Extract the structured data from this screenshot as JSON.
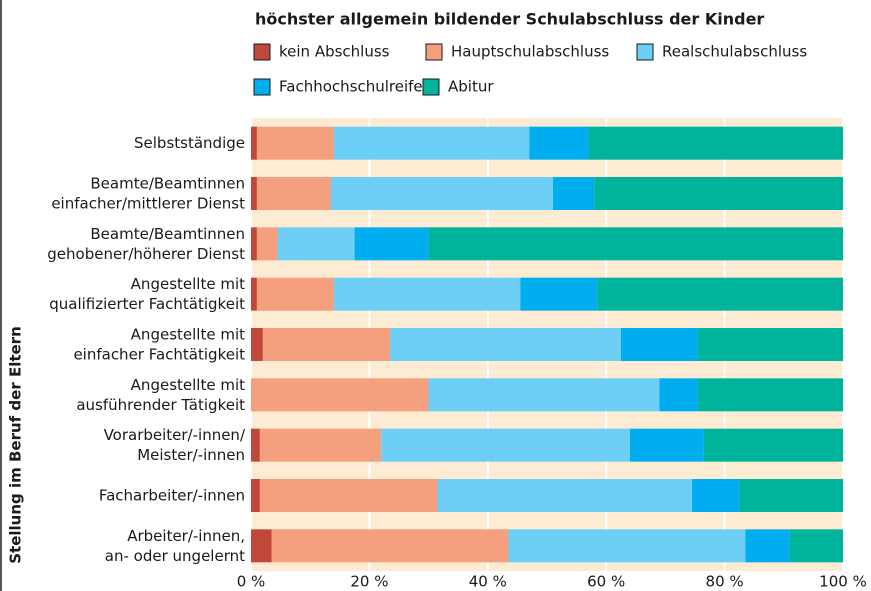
{
  "chart_data": {
    "type": "stacked_barh",
    "title": "höchster allgemein bildender Schulabschluss der Kinder",
    "ylabel": "Stellung im Beruf der Eltern",
    "categories": [
      "Selbstständige",
      "Beamte/Beamtinnen\neinfacher/mittlerer Dienst",
      "Beamte/Beamtinnen\ngehobener/höherer Dienst",
      "Angestellte mit\nqualifizierter Fachtätigkeit",
      "Angestellte mit\neinfacher Fachtätigkeit",
      "Angestellte mit\nausführender Tätigkeit",
      "Vorarbeiter/-innen/\nMeister/-innen",
      "Facharbeiter/-innen",
      "Arbeiter/-innen,\nan- oder ungelernt"
    ],
    "series": [
      {
        "name": "kein Abschluss",
        "color": "#c0483a",
        "values": [
          1,
          1,
          1,
          1,
          2,
          0,
          1.5,
          1.5,
          3.5
        ]
      },
      {
        "name": "Hauptschulabschluss",
        "color": "#f4a07f",
        "values": [
          13,
          12.5,
          3.5,
          13,
          21.5,
          30,
          20.5,
          30,
          40
        ]
      },
      {
        "name": "Realschulabschluss",
        "color": "#6dcff6",
        "values": [
          33,
          37.5,
          13,
          31.5,
          39,
          39,
          42,
          43,
          40
        ]
      },
      {
        "name": "Fachhochschulreife",
        "color": "#00aeef",
        "values": [
          10,
          7,
          12.5,
          13,
          13,
          6.5,
          12.5,
          8,
          7.5
        ]
      },
      {
        "name": "Abitur",
        "color": "#00b39b",
        "values": [
          43,
          42,
          70,
          41.5,
          24.5,
          24.5,
          23.5,
          17.5,
          9
        ]
      }
    ],
    "xlim": [
      0,
      100
    ],
    "xticks": [
      {
        "value": 0,
        "label": "0 %"
      },
      {
        "value": 20,
        "label": "20 %"
      },
      {
        "value": 40,
        "label": "40 %"
      },
      {
        "value": 60,
        "label": "60 %"
      },
      {
        "value": 80,
        "label": "80 %"
      },
      {
        "value": 100,
        "label": "100 %"
      }
    ],
    "grid": true
  }
}
